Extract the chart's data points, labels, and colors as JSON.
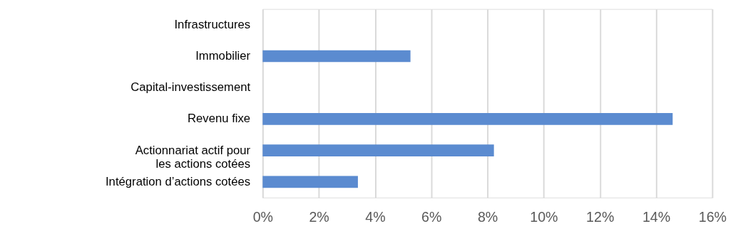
{
  "chart_data": {
    "type": "bar",
    "orientation": "horizontal",
    "categories": [
      "Infrastructures",
      "Immobilier",
      "Capital-investissement",
      "Revenu fixe",
      "Actionnariat actif pour\nles actions cotées",
      "Intégration d’actions cotées"
    ],
    "values": [
      0,
      5.26,
      0,
      14.59,
      8.23,
      3.39
    ],
    "color": "#5b8bd0",
    "xlim": [
      0,
      16
    ],
    "xticks": [
      {
        "value": 0,
        "label": "0%"
      },
      {
        "value": 2,
        "label": "2%"
      },
      {
        "value": 4,
        "label": "4%"
      },
      {
        "value": 6,
        "label": "6%"
      },
      {
        "value": 8,
        "label": "8%"
      },
      {
        "value": 10,
        "label": "10%"
      },
      {
        "value": 12,
        "label": "12%"
      },
      {
        "value": 14,
        "label": "14%"
      },
      {
        "value": 16,
        "label": "16%"
      }
    ],
    "grid": "x"
  }
}
